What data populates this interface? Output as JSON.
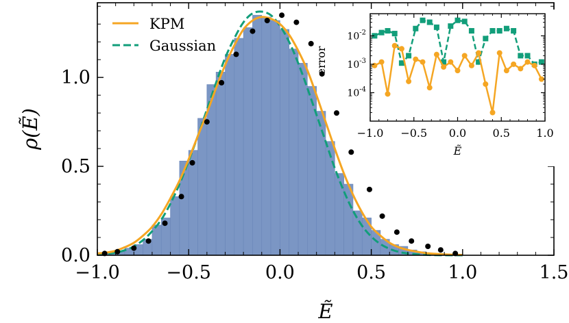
{
  "chart_data": [
    {
      "type": "bar",
      "xlabel": "Ẽ",
      "ylabel": "ρ(Ẽ)",
      "xlim": [
        -1.0,
        1.5
      ],
      "ylim": [
        0.0,
        1.42
      ],
      "xticks": [
        "−1.0",
        "−0.5",
        "0.0",
        "0.5",
        "1.0",
        "1.5"
      ],
      "xtick_values": [
        -1.0,
        -0.5,
        0.0,
        0.5,
        1.0,
        1.5
      ],
      "yticks": [
        "0.0",
        "0.5",
        "1.0"
      ],
      "ytick_values": [
        0.0,
        0.5,
        1.0
      ],
      "legend": {
        "placement": "top-left",
        "entries": [
          "KPM",
          "Gaussian"
        ]
      },
      "colors": {
        "histogram": "#7b96c4",
        "histogram_edge": "#6a86b8",
        "kpm": "#f5a623",
        "gaussian": "#129e7a",
        "markers": "#000000"
      },
      "histogram": {
        "bin_edges": [
          -1.0,
          -0.95,
          -0.9,
          -0.85,
          -0.8,
          -0.75,
          -0.7,
          -0.65,
          -0.6,
          -0.55,
          -0.5,
          -0.45,
          -0.4,
          -0.35,
          -0.3,
          -0.25,
          -0.2,
          -0.15,
          -0.1,
          -0.05,
          0.0,
          0.05,
          0.1,
          0.15,
          0.2,
          0.25,
          0.3,
          0.35,
          0.4,
          0.45,
          0.5,
          0.55,
          0.6,
          0.65,
          0.7,
          0.75,
          0.8,
          0.85,
          0.9,
          0.95,
          1.0
        ],
        "values": [
          0.003,
          0.01,
          0.02,
          0.04,
          0.06,
          0.09,
          0.17,
          0.21,
          0.33,
          0.53,
          0.59,
          0.77,
          0.96,
          1.03,
          1.13,
          1.22,
          1.28,
          1.35,
          1.34,
          1.32,
          1.27,
          1.16,
          1.08,
          0.95,
          0.81,
          0.64,
          0.46,
          0.4,
          0.25,
          0.21,
          0.14,
          0.09,
          0.06,
          0.05,
          0.03,
          0.02,
          0.01,
          0.005,
          0.002,
          0.0
        ]
      },
      "series": [
        {
          "name": "KPM",
          "style": "solid",
          "x": [
            -1.0,
            -0.95,
            -0.9,
            -0.85,
            -0.8,
            -0.75,
            -0.7,
            -0.65,
            -0.6,
            -0.55,
            -0.5,
            -0.45,
            -0.4,
            -0.35,
            -0.3,
            -0.25,
            -0.2,
            -0.15,
            -0.1,
            -0.05,
            0.0,
            0.05,
            0.1,
            0.15,
            0.2,
            0.25,
            0.3,
            0.35,
            0.4,
            0.45,
            0.5,
            0.55,
            0.6,
            0.65,
            0.7,
            0.75,
            0.8,
            0.85,
            0.9,
            0.95,
            1.0
          ],
          "y": [
            0.01,
            0.015,
            0.025,
            0.045,
            0.07,
            0.11,
            0.16,
            0.23,
            0.32,
            0.42,
            0.54,
            0.67,
            0.8,
            0.94,
            1.07,
            1.18,
            1.27,
            1.32,
            1.34,
            1.33,
            1.3,
            1.24,
            1.15,
            1.04,
            0.9,
            0.75,
            0.6,
            0.46,
            0.34,
            0.24,
            0.16,
            0.11,
            0.07,
            0.045,
            0.03,
            0.02,
            0.012,
            0.008,
            0.005,
            0.003,
            0.002
          ]
        },
        {
          "name": "Gaussian",
          "style": "dashed",
          "x": [
            -1.0,
            -0.95,
            -0.9,
            -0.85,
            -0.8,
            -0.75,
            -0.7,
            -0.65,
            -0.6,
            -0.55,
            -0.5,
            -0.45,
            -0.4,
            -0.35,
            -0.3,
            -0.25,
            -0.2,
            -0.15,
            -0.1,
            -0.05,
            0.0,
            0.05,
            0.1,
            0.15,
            0.2,
            0.25,
            0.3,
            0.35,
            0.4,
            0.45,
            0.5,
            0.55,
            0.6,
            0.65,
            0.7,
            0.75,
            0.8,
            0.85,
            0.9,
            0.95,
            1.0
          ],
          "y": [
            0.004,
            0.008,
            0.015,
            0.028,
            0.05,
            0.085,
            0.135,
            0.2,
            0.29,
            0.4,
            0.53,
            0.67,
            0.82,
            0.97,
            1.11,
            1.22,
            1.31,
            1.36,
            1.37,
            1.35,
            1.29,
            1.2,
            1.08,
            0.94,
            0.79,
            0.64,
            0.49,
            0.36,
            0.25,
            0.165,
            0.105,
            0.063,
            0.036,
            0.019,
            0.01,
            0.005,
            0.0025,
            0.001,
            0.0005,
            0.0002,
            0.0001
          ]
        },
        {
          "name": "",
          "style": "markers",
          "x": [
            -0.96,
            -0.89,
            -0.8,
            -0.72,
            -0.63,
            -0.54,
            -0.48,
            -0.4,
            -0.32,
            -0.24,
            -0.15,
            -0.07,
            0.01,
            0.09,
            0.17,
            0.23,
            0.31,
            0.39,
            0.49,
            0.56,
            0.64,
            0.72,
            0.81,
            0.88,
            0.96
          ],
          "y": [
            0.01,
            0.02,
            0.04,
            0.08,
            0.18,
            0.33,
            0.52,
            0.75,
            0.97,
            1.13,
            1.26,
            1.32,
            1.35,
            1.31,
            1.19,
            1.02,
            0.8,
            0.58,
            0.37,
            0.22,
            0.13,
            0.08,
            0.05,
            0.03,
            0.01
          ]
        }
      ]
    },
    {
      "type": "line",
      "placement": "inset top-right",
      "xlabel": "Ẽ",
      "ylabel": "error",
      "yscale": "log",
      "xlim": [
        -1.0,
        1.0
      ],
      "ylim": [
        1e-05,
        0.06
      ],
      "xticks": [
        "−1.0",
        "−0.5",
        "0.0",
        "0.5",
        "1.0"
      ],
      "xtick_values": [
        -1.0,
        -0.5,
        0.0,
        0.5,
        1.0
      ],
      "yticks": [
        "10^-4",
        "10^-3",
        "10^-2"
      ],
      "ytick_values": [
        0.0001,
        0.001,
        0.01
      ],
      "series": [
        {
          "name": "",
          "color": "#f5a623",
          "style": "solid-circle",
          "x": [
            -0.95,
            -0.87,
            -0.8,
            -0.72,
            -0.64,
            -0.56,
            -0.48,
            -0.4,
            -0.32,
            -0.24,
            -0.16,
            -0.08,
            0.0,
            0.08,
            0.16,
            0.24,
            0.32,
            0.4,
            0.48,
            0.56,
            0.64,
            0.72,
            0.8,
            0.88,
            0.96
          ],
          "y": [
            0.0009,
            0.0012,
            9e-05,
            0.0045,
            0.0035,
            0.00025,
            0.0015,
            0.0012,
            0.00015,
            0.0022,
            0.0008,
            0.0012,
            0.0006,
            0.002,
            0.0009,
            0.0025,
            0.0002,
            2e-05,
            0.0025,
            0.0006,
            0.001,
            0.0007,
            0.0012,
            0.0009,
            0.0003
          ]
        },
        {
          "name": "",
          "color": "#129e7a",
          "style": "dashed-square",
          "x": [
            -0.95,
            -0.87,
            -0.8,
            -0.72,
            -0.64,
            -0.56,
            -0.48,
            -0.4,
            -0.32,
            -0.24,
            -0.16,
            -0.08,
            0.0,
            0.08,
            0.16,
            0.24,
            0.32,
            0.4,
            0.48,
            0.56,
            0.64,
            0.72,
            0.8,
            0.88,
            0.96
          ],
          "y": [
            0.01,
            0.013,
            0.015,
            0.012,
            0.0011,
            0.002,
            0.018,
            0.035,
            0.03,
            0.02,
            0.0012,
            0.022,
            0.035,
            0.032,
            0.015,
            0.0012,
            0.008,
            0.015,
            0.015,
            0.018,
            0.015,
            0.002,
            0.002,
            0.001,
            0.0012
          ]
        }
      ]
    }
  ]
}
